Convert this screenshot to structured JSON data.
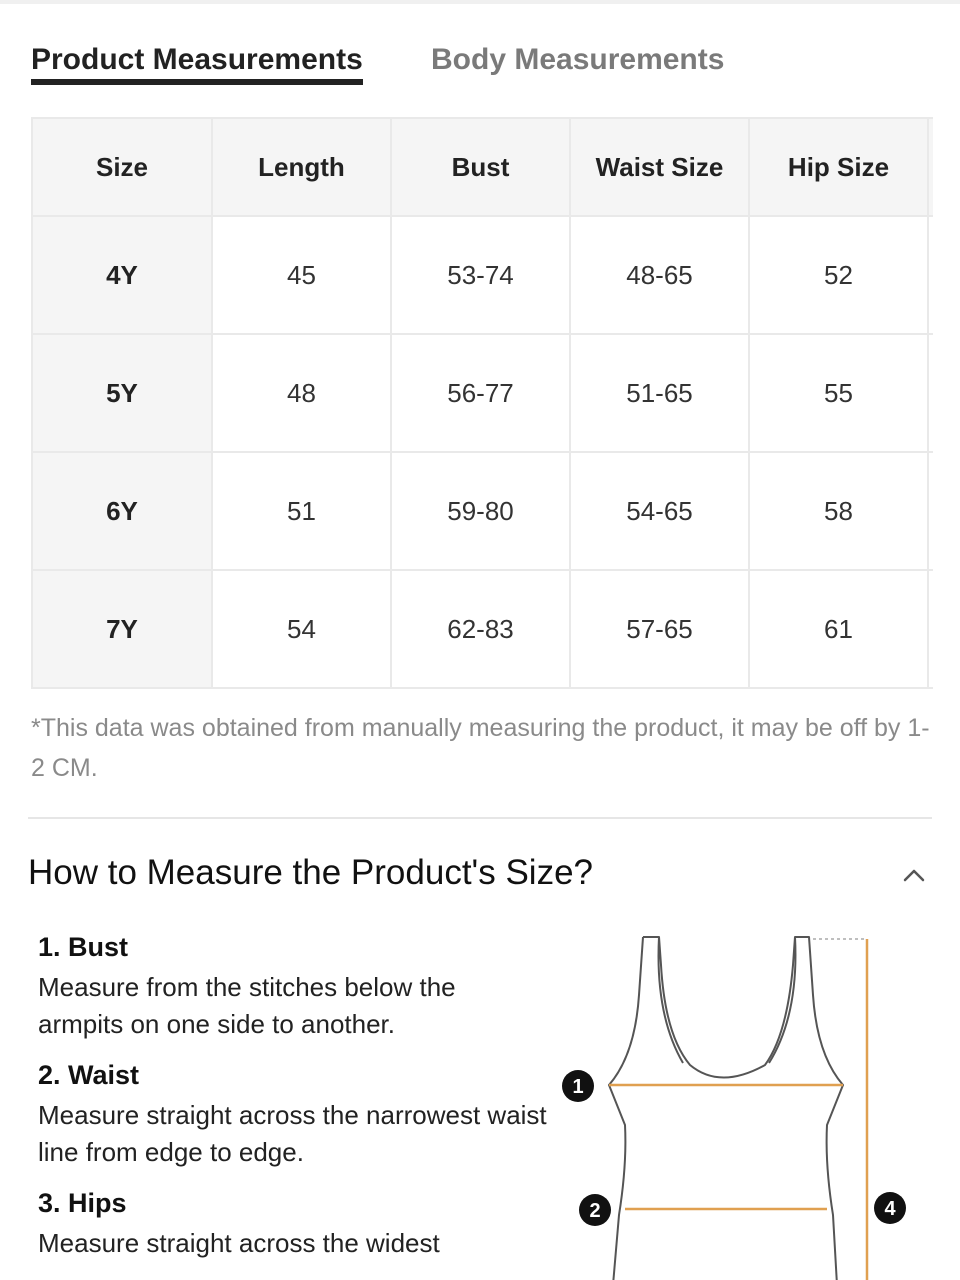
{
  "tabs": [
    {
      "label": "Product Measurements",
      "active": true
    },
    {
      "label": "Body Measurements",
      "active": false
    }
  ],
  "table": {
    "headers": [
      "Size",
      "Length",
      "Bust",
      "Waist Size",
      "Hip Size"
    ],
    "rows": [
      [
        "4Y",
        "45",
        "53-74",
        "48-65",
        "52"
      ],
      [
        "5Y",
        "48",
        "56-77",
        "51-65",
        "55"
      ],
      [
        "6Y",
        "51",
        "59-80",
        "54-65",
        "58"
      ],
      [
        "7Y",
        "54",
        "62-83",
        "57-65",
        "61"
      ]
    ]
  },
  "note": "*This data was obtained from manually measuring the product, it may be off by 1-2 CM.",
  "how_to": {
    "title": "How to Measure the Product's Size?",
    "steps": [
      {
        "title": "1. Bust",
        "desc": "Measure from the stitches below the armpits on one side to another."
      },
      {
        "title": "2. Waist",
        "desc": "Measure straight across the narrowest waist line from edge to edge."
      },
      {
        "title": "3. Hips",
        "desc": "Measure straight across the widest"
      }
    ]
  },
  "diagram": {
    "markers": [
      "1",
      "2",
      "4"
    ],
    "line_color": "#e0a050",
    "outline_color": "#555555"
  },
  "icons": {
    "collapse": "chevron-up-icon"
  }
}
